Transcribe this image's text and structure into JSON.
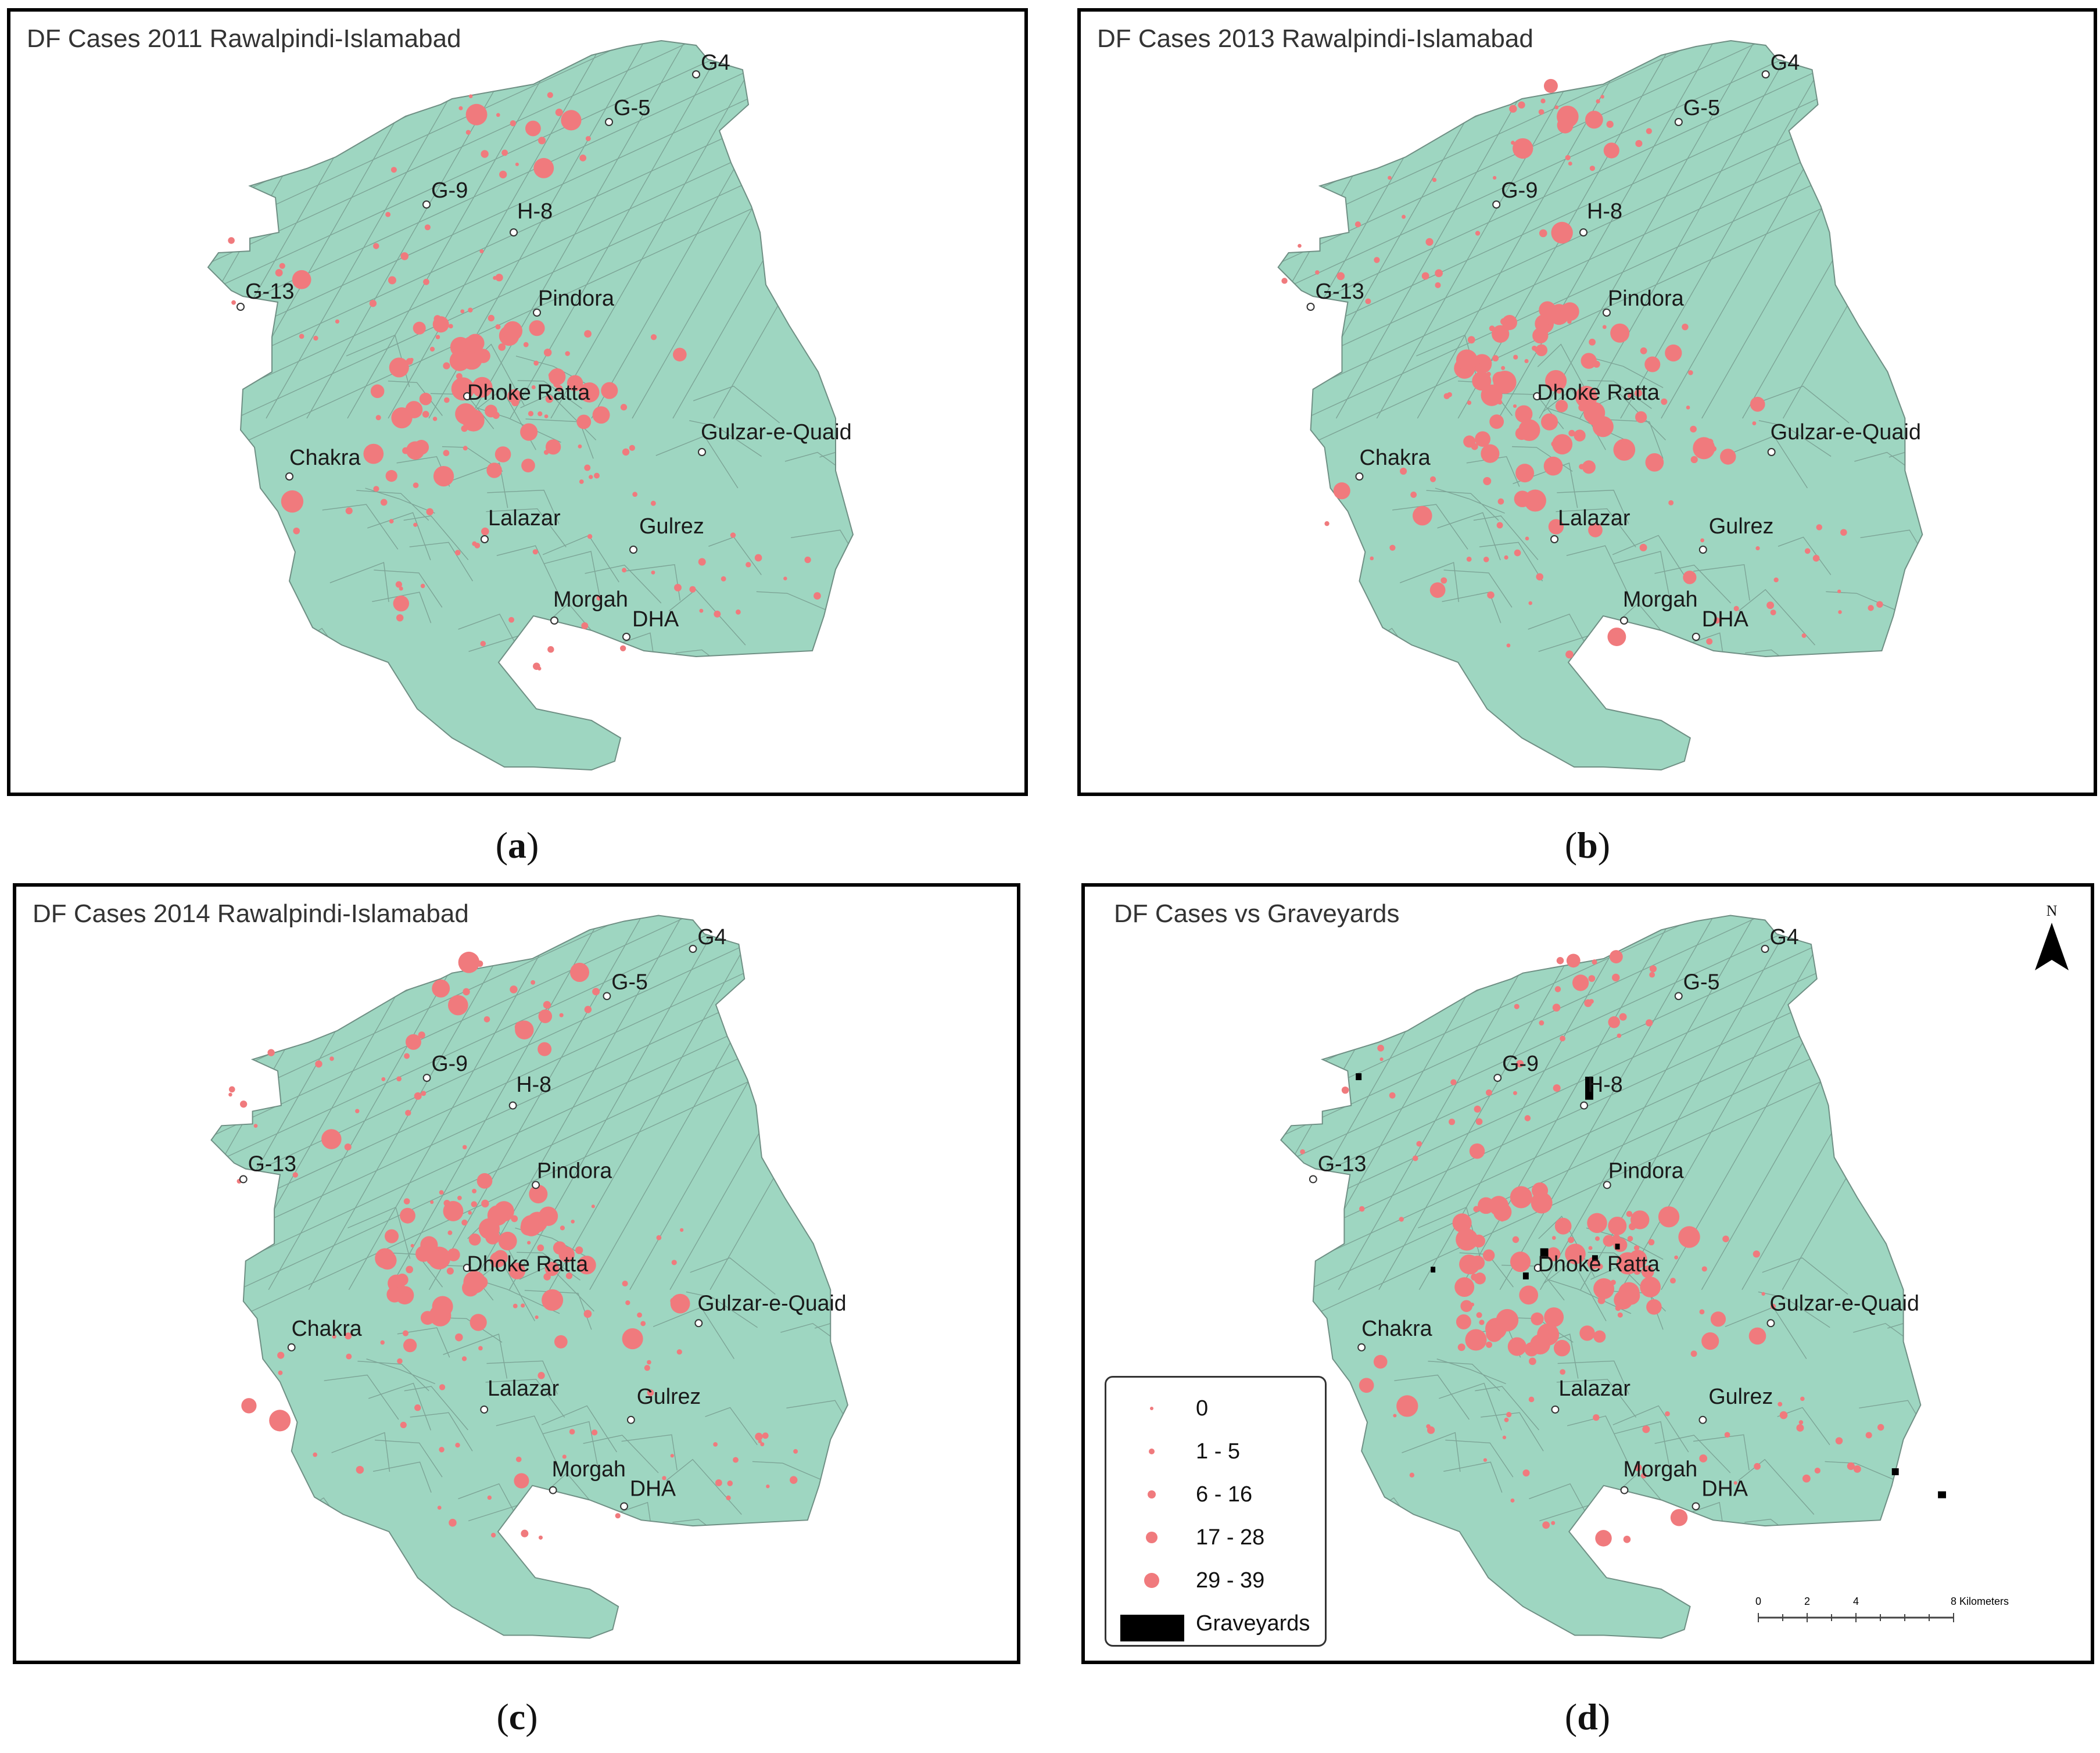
{
  "panels": [
    {
      "id": "a",
      "title": "DF Cases 2011 Rawalpindi-Islamabad",
      "caption": "a"
    },
    {
      "id": "b",
      "title": "DF Cases 2013 Rawalpindi-Islamabad",
      "caption": "b"
    },
    {
      "id": "c",
      "title": "DF Cases 2014 Rawalpindi-Islamabad",
      "caption": "c"
    },
    {
      "id": "d",
      "title": "DF Cases vs Graveyards",
      "caption": "d"
    }
  ],
  "places": [
    "G4",
    "G-5",
    "G-9",
    "H-8",
    "G-13",
    "Pindora",
    "Dhoke Ratta",
    "Gulzar-e-Quaid",
    "Chakra",
    "Lalazar",
    "Gulrez",
    "Morgah",
    "DHA"
  ],
  "legend": {
    "items": [
      {
        "label": "0",
        "class": 0
      },
      {
        "label": "1 - 5",
        "class": 1
      },
      {
        "label": "6 - 16",
        "class": 2
      },
      {
        "label": "17 - 28",
        "class": 3
      },
      {
        "label": "29 - 39",
        "class": 4
      }
    ],
    "graveyards_label": "Graveyards"
  },
  "north_label": "N",
  "scale": {
    "ticks": [
      "0",
      "2",
      "4",
      "8"
    ],
    "unit": "Kilometers"
  },
  "colors": {
    "land": "#9ed6c1",
    "boundary": "#6f8f84",
    "dot": "#f07a7d",
    "graveyard": "#000000"
  }
}
